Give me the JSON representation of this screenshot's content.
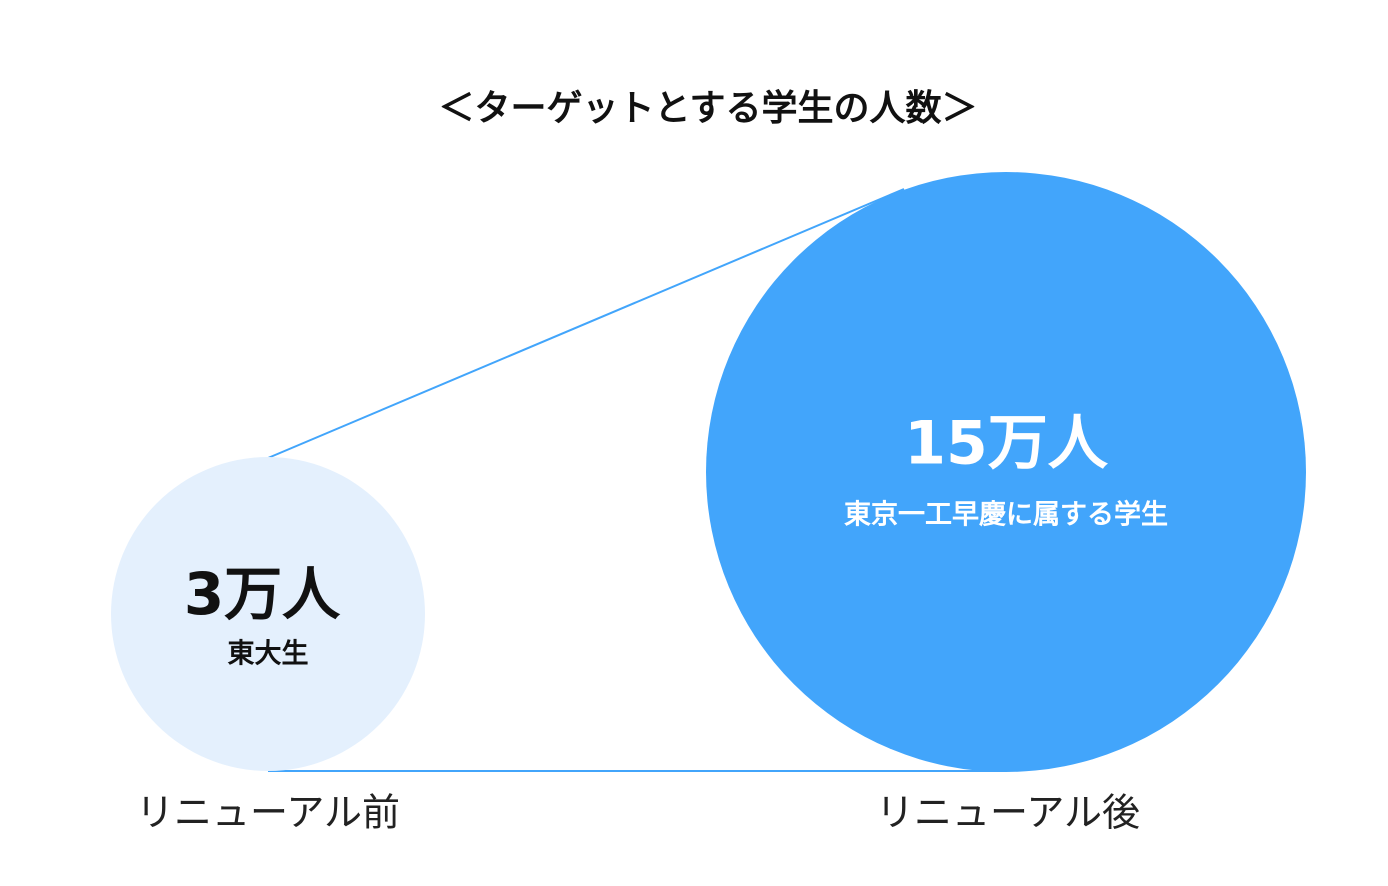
{
  "title": "＜ターゲットとする学生の人数＞",
  "items": [
    {
      "count": "3万人",
      "description": "東大生",
      "caption": "リニューアル前"
    },
    {
      "count": "15万人",
      "description": "東京一工早慶に属する学生",
      "caption": "リニューアル後"
    }
  ]
}
